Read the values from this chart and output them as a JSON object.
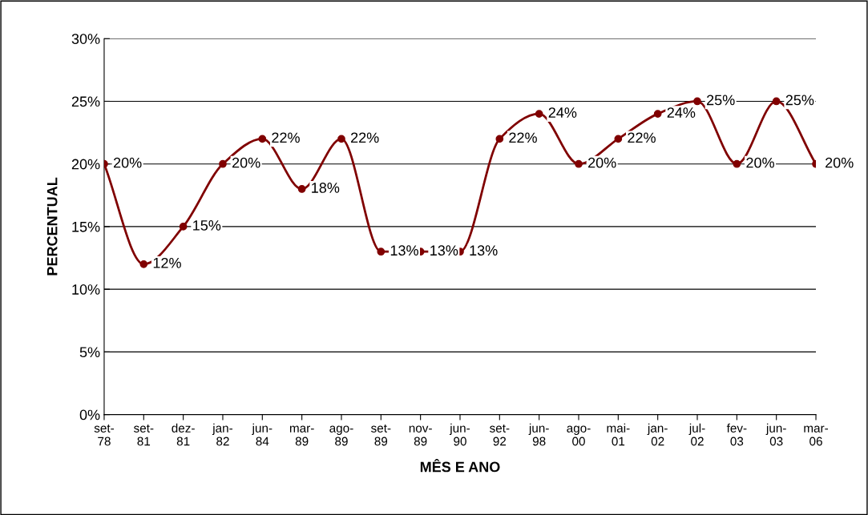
{
  "chart_data": {
    "type": "line",
    "xlabel": "MÊS E ANO",
    "ylabel": "PERCENTUAL",
    "categories": [
      "set-78",
      "set-81",
      "dez-81",
      "jan-82",
      "jun-84",
      "mar-89",
      "ago-89",
      "set-89",
      "nov-89",
      "jun-90",
      "set-92",
      "jun-98",
      "ago-00",
      "mai-01",
      "jan-02",
      "jul-02",
      "fev-03",
      "jun-03",
      "mar-06"
    ],
    "series": [
      {
        "color": "#800000",
        "values": [
          20,
          12,
          15,
          20,
          22,
          18,
          22,
          13,
          13,
          13,
          22,
          24,
          20,
          22,
          24,
          25,
          20,
          25,
          20
        ],
        "value_labels": [
          "20%",
          "12%",
          "15%",
          "20%",
          "22%",
          "18%",
          "22%",
          "13%",
          "13%",
          "13%",
          "22%",
          "24%",
          "20%",
          "22%",
          "24%",
          "25%",
          "20%",
          "25%",
          "20%"
        ]
      }
    ],
    "ylim": [
      0,
      30
    ],
    "yticks": [
      {
        "value": 0,
        "label": "0%"
      },
      {
        "value": 5,
        "label": "5%"
      },
      {
        "value": 10,
        "label": "10%"
      },
      {
        "value": 15,
        "label": "15%"
      },
      {
        "value": 20,
        "label": "20%"
      },
      {
        "value": 25,
        "label": "25%"
      },
      {
        "value": 30,
        "label": "30%"
      }
    ],
    "grid": "y",
    "marker": "circle",
    "line_style": "solid",
    "legend": false
  }
}
